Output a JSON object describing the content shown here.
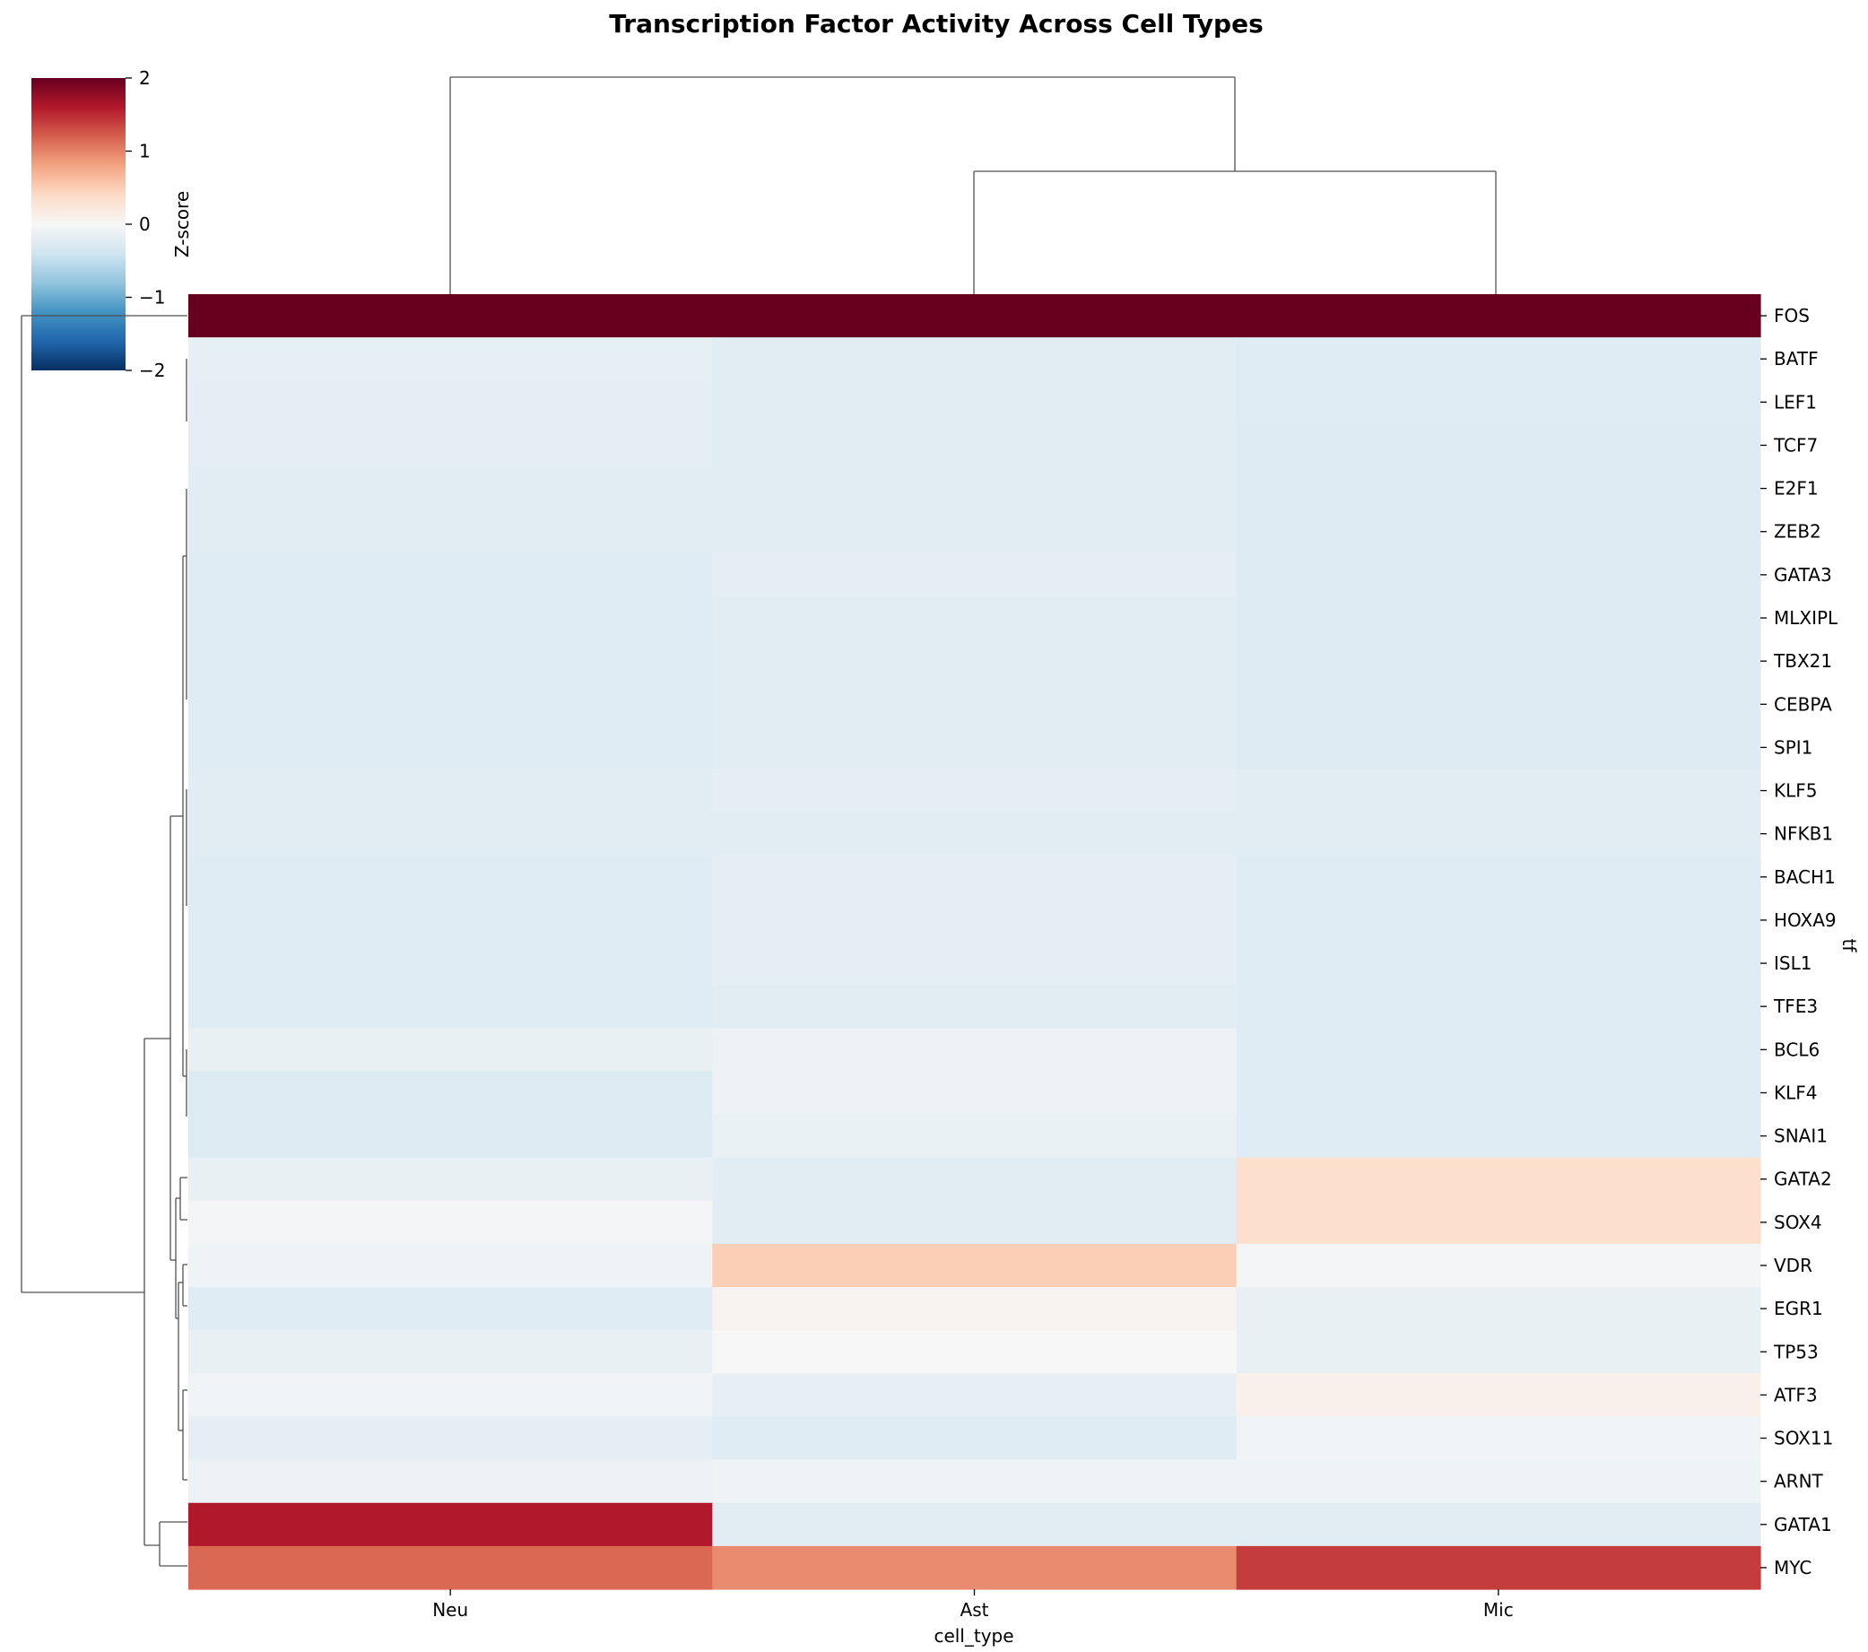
{
  "chart_data": {
    "type": "heatmap",
    "title": "Transcription Factor Activity Across Cell Types",
    "xlabel": "cell_type",
    "ylabel": "tf",
    "x_categories": [
      "Neu",
      "Ast",
      "Mic"
    ],
    "y_categories": [
      "FOS",
      "BATF",
      "LEF1",
      "TCF7",
      "E2F1",
      "ZEB2",
      "GATA3",
      "MLXIPL",
      "TBX21",
      "CEBPA",
      "SPI1",
      "KLF5",
      "NFKB1",
      "BACH1",
      "HOXA9",
      "ISL1",
      "TFE3",
      "BCL6",
      "KLF4",
      "SNAI1",
      "GATA2",
      "SOX4",
      "VDR",
      "EGR1",
      "TP53",
      "ATF3",
      "SOX11",
      "ARNT",
      "GATA1",
      "MYC"
    ],
    "values": [
      [
        2.8,
        2.8,
        2.8
      ],
      [
        -0.18,
        -0.23,
        -0.25
      ],
      [
        -0.2,
        -0.23,
        -0.25
      ],
      [
        -0.2,
        -0.23,
        -0.26
      ],
      [
        -0.22,
        -0.23,
        -0.26
      ],
      [
        -0.22,
        -0.23,
        -0.26
      ],
      [
        -0.24,
        -0.2,
        -0.26
      ],
      [
        -0.24,
        -0.22,
        -0.26
      ],
      [
        -0.24,
        -0.23,
        -0.26
      ],
      [
        -0.24,
        -0.23,
        -0.26
      ],
      [
        -0.24,
        -0.23,
        -0.26
      ],
      [
        -0.22,
        -0.2,
        -0.23
      ],
      [
        -0.22,
        -0.22,
        -0.23
      ],
      [
        -0.24,
        -0.2,
        -0.24
      ],
      [
        -0.24,
        -0.2,
        -0.24
      ],
      [
        -0.24,
        -0.2,
        -0.24
      ],
      [
        -0.24,
        -0.22,
        -0.24
      ],
      [
        -0.15,
        -0.12,
        -0.24
      ],
      [
        -0.28,
        -0.12,
        -0.24
      ],
      [
        -0.28,
        -0.14,
        -0.24
      ],
      [
        -0.15,
        -0.23,
        0.35
      ],
      [
        -0.04,
        -0.23,
        0.35
      ],
      [
        -0.1,
        0.5,
        -0.04
      ],
      [
        -0.24,
        0.06,
        -0.15
      ],
      [
        -0.15,
        0.0,
        -0.15
      ],
      [
        -0.07,
        -0.17,
        0.1
      ],
      [
        -0.2,
        -0.25,
        -0.07
      ],
      [
        -0.12,
        -0.09,
        -0.09
      ],
      [
        1.6,
        -0.23,
        -0.23
      ],
      [
        1.15,
        0.95,
        1.4
      ]
    ],
    "vmin": -2,
    "vmax": 2,
    "colormap": "RdBu_r",
    "colorbar": {
      "label": "Z-score",
      "ticks": [
        "2",
        "1",
        "0",
        "−1",
        "−2"
      ]
    }
  }
}
